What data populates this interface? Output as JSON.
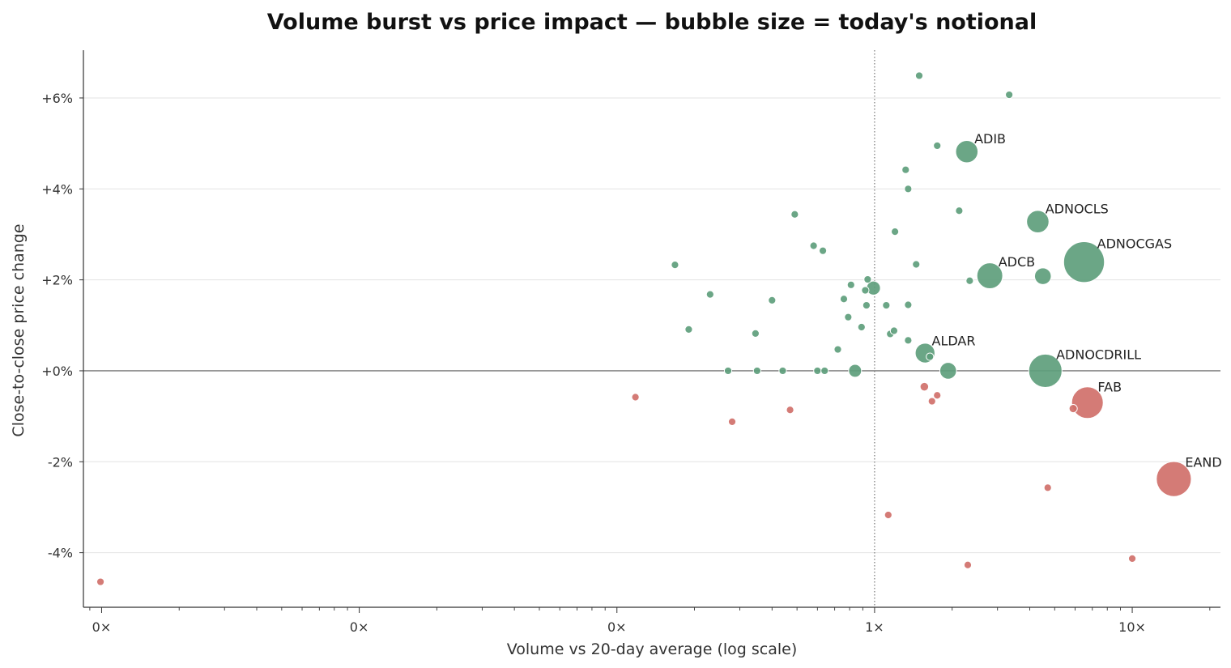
{
  "chart_data": {
    "type": "scatter",
    "title": "Volume burst vs price impact — bubble size = today's notional",
    "xlabel": "Volume vs 20-day average (log scale)",
    "ylabel": "Close-to-close price change",
    "x_scale": "log",
    "xlim": [
      0.00085,
      22
    ],
    "ylim": [
      -5.2,
      7.05
    ],
    "x_ticks": [
      {
        "value": 0.001,
        "label": "0×"
      },
      {
        "value": 0.01,
        "label": "0×"
      },
      {
        "value": 0.1,
        "label": "0×"
      },
      {
        "value": 1,
        "label": "1×"
      },
      {
        "value": 10,
        "label": "10×"
      }
    ],
    "y_ticks": [
      {
        "value": 6,
        "label": "+6%"
      },
      {
        "value": 4,
        "label": "+4%"
      },
      {
        "value": 2,
        "label": "+2%"
      },
      {
        "value": 0,
        "label": "+0%"
      },
      {
        "value": -2,
        "label": "-2%"
      },
      {
        "value": -4,
        "label": "-4%"
      }
    ],
    "grid": "horizontal",
    "reference_lines": {
      "x": 1,
      "y": 0
    },
    "colors": {
      "up": "#5e9e7c",
      "down": "#d0706a",
      "zero": "#5e9e7c"
    },
    "size_unit": "relative notional",
    "points": [
      {
        "x": 0.00099,
        "y": -4.64,
        "size": 1,
        "label": ""
      },
      {
        "x": 0.118,
        "y": -0.58,
        "size": 1,
        "label": ""
      },
      {
        "x": 0.28,
        "y": -1.12,
        "size": 1,
        "label": ""
      },
      {
        "x": 0.47,
        "y": -0.86,
        "size": 1,
        "label": ""
      },
      {
        "x": 1.13,
        "y": -3.17,
        "size": 1,
        "label": ""
      },
      {
        "x": 1.56,
        "y": -0.35,
        "size": 1.3,
        "label": ""
      },
      {
        "x": 1.67,
        "y": -0.67,
        "size": 1,
        "label": ""
      },
      {
        "x": 1.75,
        "y": -0.54,
        "size": 1,
        "label": ""
      },
      {
        "x": 2.3,
        "y": -4.27,
        "size": 1,
        "label": ""
      },
      {
        "x": 4.7,
        "y": -2.57,
        "size": 1,
        "label": ""
      },
      {
        "x": 5.9,
        "y": -0.83,
        "size": 1.2,
        "label": ""
      },
      {
        "x": 10.0,
        "y": -4.13,
        "size": 1,
        "label": ""
      },
      {
        "x": 6.7,
        "y": -0.7,
        "size": 18,
        "label": "FAB"
      },
      {
        "x": 14.5,
        "y": -2.38,
        "size": 22,
        "label": "EAND"
      },
      {
        "x": 0.168,
        "y": 2.33,
        "size": 1,
        "label": ""
      },
      {
        "x": 0.19,
        "y": 0.91,
        "size": 1,
        "label": ""
      },
      {
        "x": 0.23,
        "y": 1.68,
        "size": 1,
        "label": ""
      },
      {
        "x": 0.27,
        "y": 0.0,
        "size": 1,
        "label": ""
      },
      {
        "x": 0.345,
        "y": 0.82,
        "size": 1,
        "label": ""
      },
      {
        "x": 0.35,
        "y": 0.0,
        "size": 1,
        "label": ""
      },
      {
        "x": 0.4,
        "y": 1.55,
        "size": 1,
        "label": ""
      },
      {
        "x": 0.44,
        "y": 0.0,
        "size": 1,
        "label": ""
      },
      {
        "x": 0.49,
        "y": 3.44,
        "size": 1,
        "label": ""
      },
      {
        "x": 0.58,
        "y": 2.75,
        "size": 1,
        "label": ""
      },
      {
        "x": 0.6,
        "y": 0.0,
        "size": 1,
        "label": ""
      },
      {
        "x": 0.63,
        "y": 2.64,
        "size": 1,
        "label": ""
      },
      {
        "x": 0.64,
        "y": 0.0,
        "size": 1,
        "label": ""
      },
      {
        "x": 0.72,
        "y": 0.47,
        "size": 1,
        "label": ""
      },
      {
        "x": 0.76,
        "y": 1.58,
        "size": 1,
        "label": ""
      },
      {
        "x": 0.79,
        "y": 1.18,
        "size": 1,
        "label": ""
      },
      {
        "x": 0.81,
        "y": 1.89,
        "size": 1,
        "label": ""
      },
      {
        "x": 0.84,
        "y": 0.0,
        "size": 3,
        "label": ""
      },
      {
        "x": 0.89,
        "y": 0.96,
        "size": 1,
        "label": ""
      },
      {
        "x": 0.92,
        "y": 1.77,
        "size": 1,
        "label": ""
      },
      {
        "x": 0.93,
        "y": 1.44,
        "size": 1,
        "label": ""
      },
      {
        "x": 0.94,
        "y": 2.01,
        "size": 1,
        "label": ""
      },
      {
        "x": 0.99,
        "y": 1.82,
        "size": 3.5,
        "label": ""
      },
      {
        "x": 1.11,
        "y": 1.44,
        "size": 1,
        "label": ""
      },
      {
        "x": 1.15,
        "y": 0.81,
        "size": 1,
        "label": ""
      },
      {
        "x": 1.19,
        "y": 0.88,
        "size": 1,
        "label": ""
      },
      {
        "x": 1.2,
        "y": 3.06,
        "size": 1,
        "label": ""
      },
      {
        "x": 1.32,
        "y": 4.42,
        "size": 1,
        "label": ""
      },
      {
        "x": 1.35,
        "y": 4.0,
        "size": 1,
        "label": ""
      },
      {
        "x": 1.35,
        "y": 1.45,
        "size": 1,
        "label": ""
      },
      {
        "x": 1.35,
        "y": 0.67,
        "size": 1,
        "label": ""
      },
      {
        "x": 1.45,
        "y": 2.34,
        "size": 1,
        "label": ""
      },
      {
        "x": 1.49,
        "y": 6.49,
        "size": 1,
        "label": ""
      },
      {
        "x": 1.57,
        "y": 0.39,
        "size": 7,
        "label": "ALDAR"
      },
      {
        "x": 1.64,
        "y": 0.31,
        "size": 1,
        "label": ""
      },
      {
        "x": 1.75,
        "y": 4.95,
        "size": 1,
        "label": ""
      },
      {
        "x": 1.93,
        "y": 0.0,
        "size": 5,
        "label": ""
      },
      {
        "x": 2.13,
        "y": 3.52,
        "size": 1,
        "label": ""
      },
      {
        "x": 2.28,
        "y": 4.82,
        "size": 9,
        "label": "ADIB"
      },
      {
        "x": 2.34,
        "y": 1.98,
        "size": 1,
        "label": ""
      },
      {
        "x": 2.8,
        "y": 2.09,
        "size": 12,
        "label": "ADCB"
      },
      {
        "x": 3.33,
        "y": 6.07,
        "size": 1,
        "label": ""
      },
      {
        "x": 4.3,
        "y": 3.28,
        "size": 9,
        "label": "ADNOCLS"
      },
      {
        "x": 4.5,
        "y": 2.08,
        "size": 5,
        "label": ""
      },
      {
        "x": 4.6,
        "y": 0.0,
        "size": 20,
        "label": "ADNOCDRILL"
      },
      {
        "x": 6.5,
        "y": 2.39,
        "size": 30,
        "label": "ADNOCGAS"
      }
    ]
  }
}
